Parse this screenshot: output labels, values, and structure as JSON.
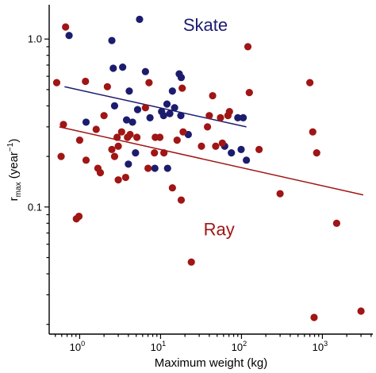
{
  "chart_data": {
    "type": "scatter",
    "title": "",
    "xlabel": "Maximum weight (kg)",
    "ylabel": {
      "main": "r",
      "sub": "max",
      "unit_open": " (year",
      "unit_sup": "−1",
      "unit_close": ")"
    },
    "x_scale": "log",
    "y_scale": "log",
    "xlim": [
      0.42,
      4200
    ],
    "ylim": [
      0.0175,
      1.6
    ],
    "x_ticks": [
      {
        "value": 1,
        "base": "10",
        "exp": "0"
      },
      {
        "value": 10,
        "base": "10",
        "exp": "1"
      },
      {
        "value": 100,
        "base": "10",
        "exp": "2"
      },
      {
        "value": 1000,
        "base": "10",
        "exp": "3"
      }
    ],
    "y_ticks": [
      {
        "value": 1.0,
        "label": "1.0"
      },
      {
        "value": 0.1,
        "label": "0.1"
      }
    ],
    "grid": false,
    "legend": "none",
    "series": [
      {
        "name": "Skate",
        "color": "#1c1c6e",
        "label_position": [
          19,
          1.12
        ],
        "fit": {
          "x": [
            0.65,
            115
          ],
          "y": [
            0.52,
            0.3
          ]
        },
        "points": [
          [
            0.74,
            1.05
          ],
          [
            1.2,
            0.32
          ],
          [
            2.5,
            0.98
          ],
          [
            2.6,
            0.67
          ],
          [
            2.7,
            0.4
          ],
          [
            3.4,
            0.68
          ],
          [
            3.8,
            0.33
          ],
          [
            4.0,
            0.18
          ],
          [
            4.1,
            0.49
          ],
          [
            4.5,
            0.32
          ],
          [
            4.9,
            0.21
          ],
          [
            5.2,
            0.38
          ],
          [
            5.5,
            1.31
          ],
          [
            6.5,
            0.64
          ],
          [
            7.4,
            0.34
          ],
          [
            8.5,
            0.17
          ],
          [
            10.3,
            0.37
          ],
          [
            10.9,
            0.35
          ],
          [
            12.0,
            0.41
          ],
          [
            12.2,
            0.17
          ],
          [
            13.0,
            0.36
          ],
          [
            14.0,
            0.49
          ],
          [
            14.9,
            0.39
          ],
          [
            17.0,
            0.62
          ],
          [
            17.8,
            0.35
          ],
          [
            18.0,
            0.59
          ],
          [
            22.0,
            0.27
          ],
          [
            62.0,
            0.23
          ],
          [
            75.0,
            0.21
          ],
          [
            90.0,
            0.34
          ],
          [
            99.0,
            0.22
          ],
          [
            105.0,
            0.34
          ],
          [
            115.0,
            0.19
          ]
        ]
      },
      {
        "name": "Ray",
        "color": "#a01515",
        "label_position": [
          34,
          0.068
        ],
        "fit": {
          "x": [
            0.56,
            3200
          ],
          "y": [
            0.3,
            0.118
          ]
        },
        "points": [
          [
            0.52,
            0.55
          ],
          [
            0.59,
            0.2
          ],
          [
            0.63,
            0.31
          ],
          [
            0.67,
            1.18
          ],
          [
            0.91,
            0.085
          ],
          [
            0.98,
            0.088
          ],
          [
            1.0,
            0.25
          ],
          [
            1.18,
            0.56
          ],
          [
            1.2,
            0.19
          ],
          [
            1.6,
            0.29
          ],
          [
            1.68,
            0.17
          ],
          [
            1.8,
            0.16
          ],
          [
            2.0,
            0.35
          ],
          [
            2.2,
            0.52
          ],
          [
            2.5,
            0.22
          ],
          [
            2.7,
            0.2
          ],
          [
            2.9,
            0.26
          ],
          [
            3.0,
            0.23
          ],
          [
            3.0,
            0.145
          ],
          [
            3.3,
            0.28
          ],
          [
            3.7,
            0.15
          ],
          [
            3.9,
            0.26
          ],
          [
            4.2,
            0.27
          ],
          [
            5.1,
            0.26
          ],
          [
            6.5,
            0.39
          ],
          [
            7.0,
            0.17
          ],
          [
            7.2,
            0.55
          ],
          [
            8.4,
            0.21
          ],
          [
            8.6,
            0.26
          ],
          [
            9.8,
            0.26
          ],
          [
            11.0,
            0.21
          ],
          [
            14.0,
            0.13
          ],
          [
            16.0,
            0.25
          ],
          [
            18.0,
            0.11
          ],
          [
            18.5,
            0.51
          ],
          [
            19.0,
            0.28
          ],
          [
            24.0,
            0.047
          ],
          [
            32.0,
            0.23
          ],
          [
            38.0,
            0.3
          ],
          [
            40.0,
            0.35
          ],
          [
            44.0,
            0.46
          ],
          [
            48.0,
            0.23
          ],
          [
            55.0,
            0.34
          ],
          [
            58.0,
            0.24
          ],
          [
            68.0,
            0.35
          ],
          [
            71.0,
            0.37
          ],
          [
            120.0,
            0.9
          ],
          [
            125.0,
            0.48
          ],
          [
            165.0,
            0.22
          ],
          [
            300.0,
            0.12
          ],
          [
            700.0,
            0.55
          ],
          [
            760.0,
            0.28
          ],
          [
            790.0,
            0.022
          ],
          [
            850.0,
            0.21
          ],
          [
            1500.0,
            0.08
          ],
          [
            3000.0,
            0.024
          ]
        ]
      }
    ]
  }
}
